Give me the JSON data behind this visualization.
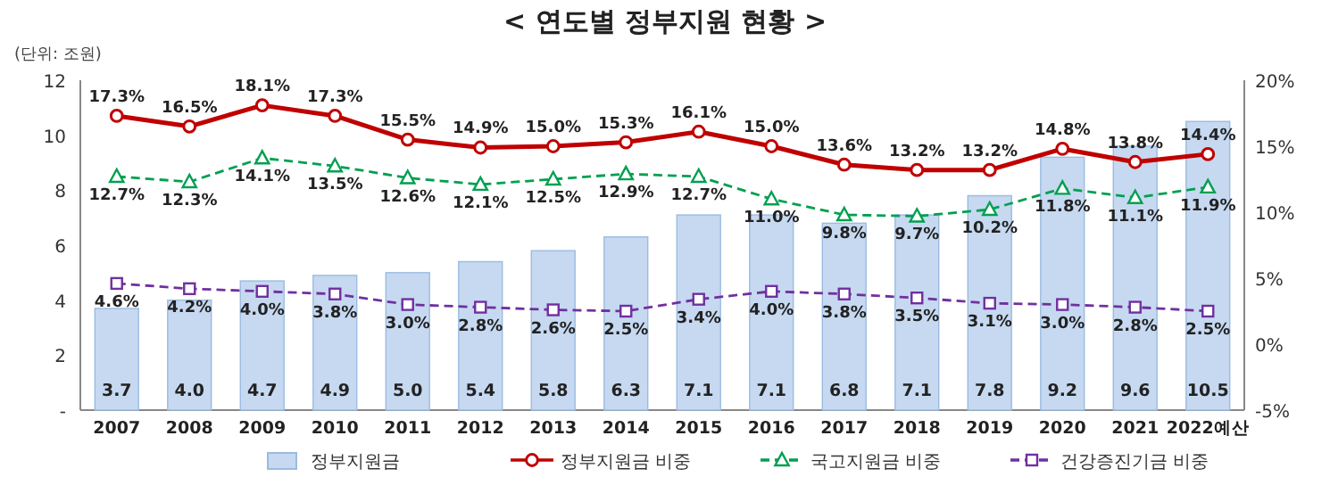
{
  "chart_data": {
    "type": "bar",
    "title": "< 연도별  정부지원  현황 >",
    "subtitle": "(단위: 조원)",
    "categories": [
      "2007",
      "2008",
      "2009",
      "2010",
      "2011",
      "2012",
      "2013",
      "2014",
      "2015",
      "2016",
      "2017",
      "2018",
      "2019",
      "2020",
      "2021",
      "2022예산"
    ],
    "ylim": [
      0,
      12
    ],
    "yticks": [
      {
        "value": 0,
        "label": "-"
      },
      2,
      4,
      6,
      8,
      10,
      12
    ],
    "y2lim": [
      -5,
      20
    ],
    "y2ticks": [
      {
        "value": -5,
        "label": "-5%"
      },
      {
        "value": 0,
        "label": "0%"
      },
      {
        "value": 5,
        "label": "5%"
      },
      {
        "value": 10,
        "label": "10%"
      },
      {
        "value": 15,
        "label": "15%"
      },
      {
        "value": 20,
        "label": "20%"
      }
    ],
    "legend": "bottom",
    "grid": false,
    "series": [
      {
        "name": "정부지원금",
        "color": "#c6d9f1",
        "values": [
          3.7,
          4.0,
          4.7,
          4.9,
          5.0,
          5.4,
          5.8,
          6.3,
          7.1,
          7.1,
          6.8,
          7.1,
          7.8,
          9.2,
          9.6,
          10.5
        ],
        "value_labels": [
          "3.7",
          "4.0",
          "4.7",
          "4.9",
          "5.0",
          "5.4",
          "5.8",
          "6.3",
          "7.1",
          "7.1",
          "6.8",
          "7.1",
          "7.8",
          "9.2",
          "9.6",
          "10.5"
        ]
      },
      {
        "name": "정부지원금 비중",
        "type": "line",
        "axis": "y2",
        "color": "#c00000",
        "marker": "circle",
        "line_style": "solid",
        "values": [
          17.3,
          16.5,
          18.1,
          17.3,
          15.5,
          14.9,
          15.0,
          15.3,
          16.1,
          15.0,
          13.6,
          13.2,
          13.2,
          14.8,
          13.8,
          14.4
        ],
        "value_labels": [
          "17.3%",
          "16.5%",
          "18.1%",
          "17.3%",
          "15.5%",
          "14.9%",
          "15.0%",
          "15.3%",
          "16.1%",
          "15.0%",
          "13.6%",
          "13.2%",
          "13.2%",
          "14.8%",
          "13.8%",
          "14.4%"
        ]
      },
      {
        "name": "국고지원금 비중",
        "type": "line",
        "axis": "y2",
        "color": "#00a050",
        "marker": "triangle",
        "line_style": "dashed",
        "values": [
          12.7,
          12.3,
          14.1,
          13.5,
          12.6,
          12.1,
          12.5,
          12.9,
          12.7,
          11.0,
          9.8,
          9.7,
          10.2,
          11.8,
          11.1,
          11.9
        ],
        "value_labels": [
          "12.7%",
          "12.3%",
          "14.1%",
          "13.5%",
          "12.6%",
          "12.1%",
          "12.5%",
          "12.9%",
          "12.7%",
          "11.0%",
          "9.8%",
          "9.7%",
          "10.2%",
          "11.8%",
          "11.1%",
          "11.9%"
        ]
      },
      {
        "name": "건강증진기금 비중",
        "type": "line",
        "axis": "y2",
        "color": "#7030a0",
        "marker": "square",
        "line_style": "dashed",
        "values": [
          4.6,
          4.2,
          4.0,
          3.8,
          3.0,
          2.8,
          2.6,
          2.5,
          3.4,
          4.0,
          3.8,
          3.5,
          3.1,
          3.0,
          2.8,
          2.5
        ],
        "value_labels": [
          "4.6%",
          "4.2%",
          "4.0%",
          "3.8%",
          "3.0%",
          "2.8%",
          "2.6%",
          "2.5%",
          "3.4%",
          "4.0%",
          "3.8%",
          "3.5%",
          "3.1%",
          "3.0%",
          "2.8%",
          "2.5%"
        ]
      }
    ]
  }
}
